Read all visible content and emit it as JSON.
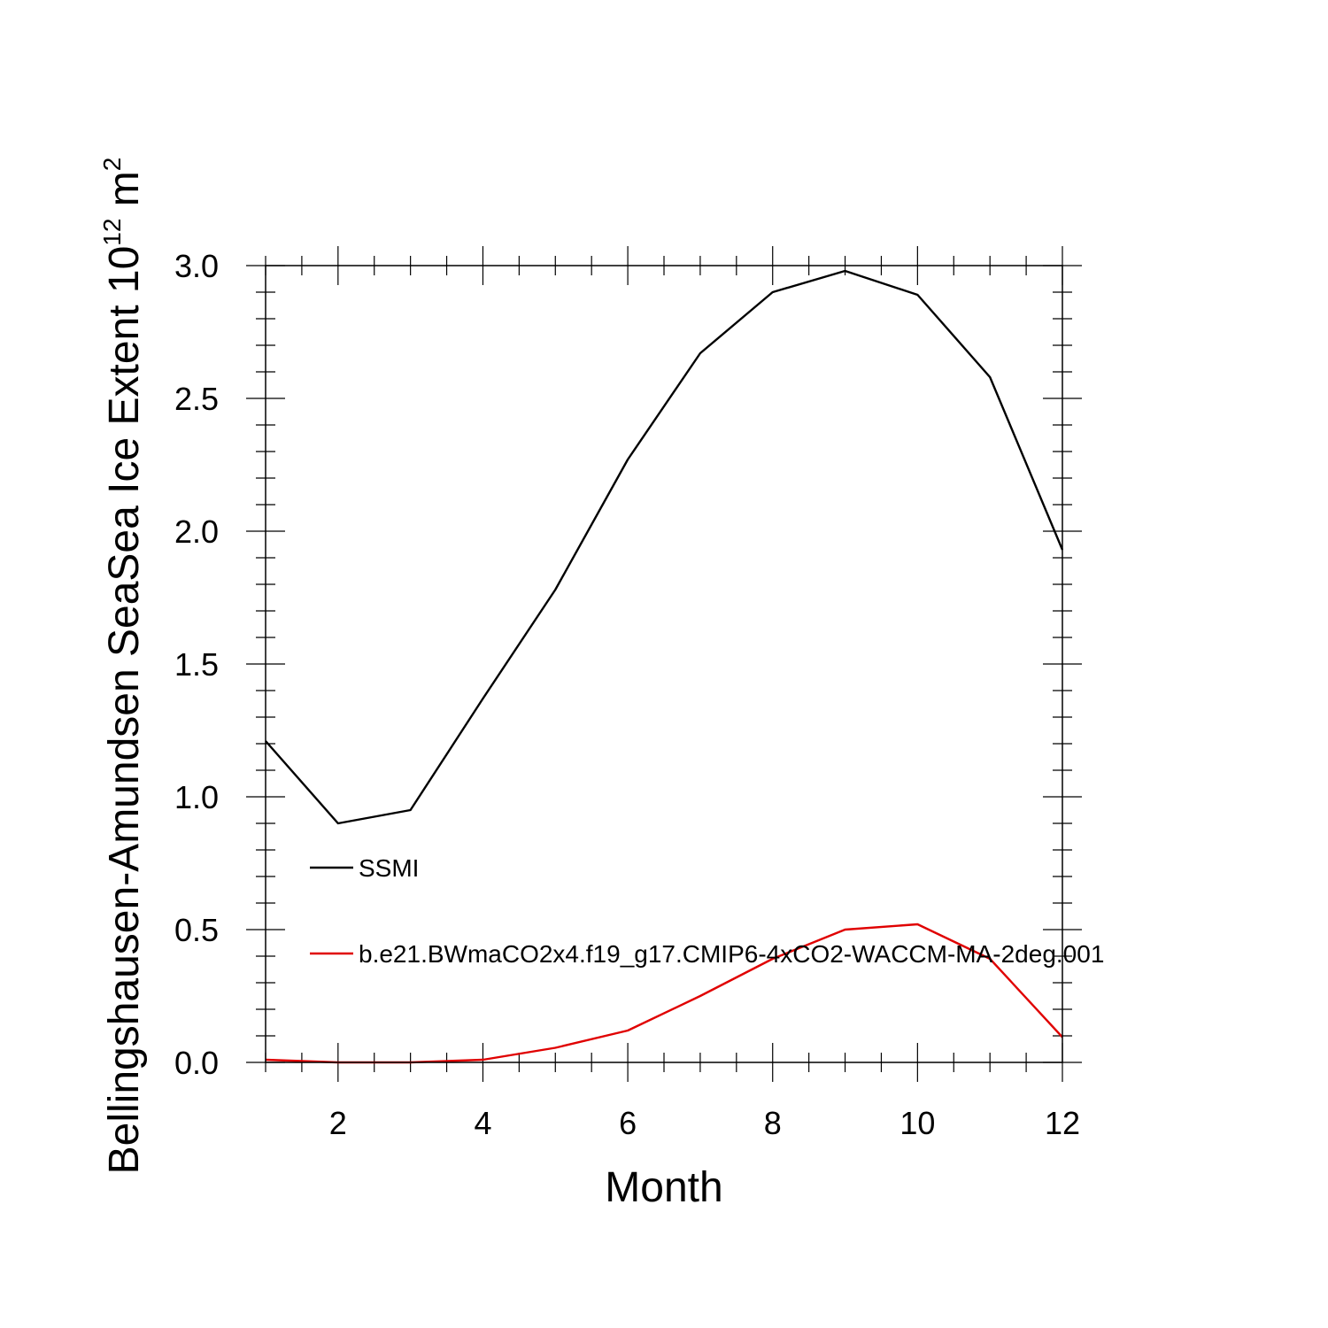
{
  "chart_data": {
    "type": "line",
    "title": "",
    "xlabel": "Month",
    "ylabel": {
      "main": "Bellingshausen-Amundsen SeaSea Ice Extent 10",
      "exponent": "12",
      "unit": " m",
      "unit_exponent": "2"
    },
    "xlim": [
      1,
      12
    ],
    "ylim": [
      0,
      3
    ],
    "x_ticks": [
      2,
      4,
      6,
      8,
      10,
      12
    ],
    "x_tick_labels": [
      "2",
      "4",
      "6",
      "8",
      "10",
      "12"
    ],
    "y_ticks": [
      0,
      0.5,
      1.0,
      1.5,
      2.0,
      2.5,
      3.0
    ],
    "y_tick_labels": [
      "0.0",
      "0.5",
      "1.0",
      "1.5",
      "2.0",
      "2.5",
      "3.0"
    ],
    "grid": false,
    "legend_position": "center-left",
    "x": [
      1,
      2,
      3,
      4,
      5,
      6,
      7,
      8,
      9,
      10,
      11,
      12
    ],
    "series": [
      {
        "name": "SSMI",
        "color": "#000000",
        "values": [
          1.21,
          0.9,
          0.95,
          1.37,
          1.78,
          2.27,
          2.67,
          2.9,
          2.98,
          2.89,
          2.58,
          1.93
        ]
      },
      {
        "name": "b.e21.BWmaCO2x4.f19_g17.CMIP6-4xCO2-WACCM-MA-2deg.001",
        "color": "#e00000",
        "values": [
          0.01,
          0.0,
          0.0,
          0.01,
          0.055,
          0.12,
          0.25,
          0.39,
          0.5,
          0.52,
          0.39,
          0.095
        ]
      }
    ]
  }
}
